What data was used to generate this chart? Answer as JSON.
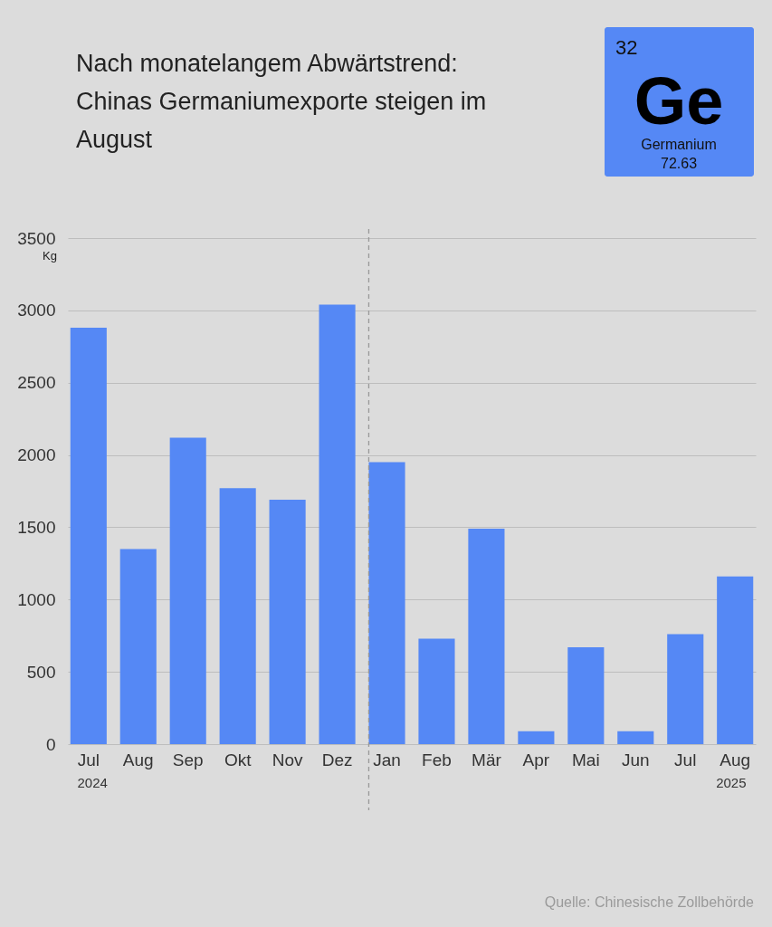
{
  "chart_data": {
    "type": "bar",
    "title": "Nach monatelangem Abwärtstrend:\nChinas Germaniumexporte steigen im\nAugust",
    "ylabel": "Kg",
    "categories": [
      "Jul",
      "Aug",
      "Sep",
      "Okt",
      "Nov",
      "Dez",
      "Jan",
      "Feb",
      "Mär",
      "Apr",
      "Mai",
      "Jun",
      "Jul",
      "Aug"
    ],
    "values": [
      2880,
      1350,
      2120,
      1770,
      1690,
      3040,
      1950,
      730,
      1490,
      90,
      670,
      90,
      760,
      1160
    ],
    "color": "#5588f5",
    "ylim": [
      0,
      3500
    ],
    "yticks": [
      0,
      500,
      1000,
      1500,
      2000,
      2500,
      3000,
      3500
    ],
    "grid": "y",
    "ref_lines": [
      {
        "axis": "x",
        "value": "Jan",
        "color": "#999999",
        "line_style": "dashed"
      }
    ],
    "annotations": [
      "2024",
      "2025",
      "Quelle: Chinesische Zollbehörde",
      "32",
      "Ge",
      "Germanium",
      "72.63"
    ]
  }
}
